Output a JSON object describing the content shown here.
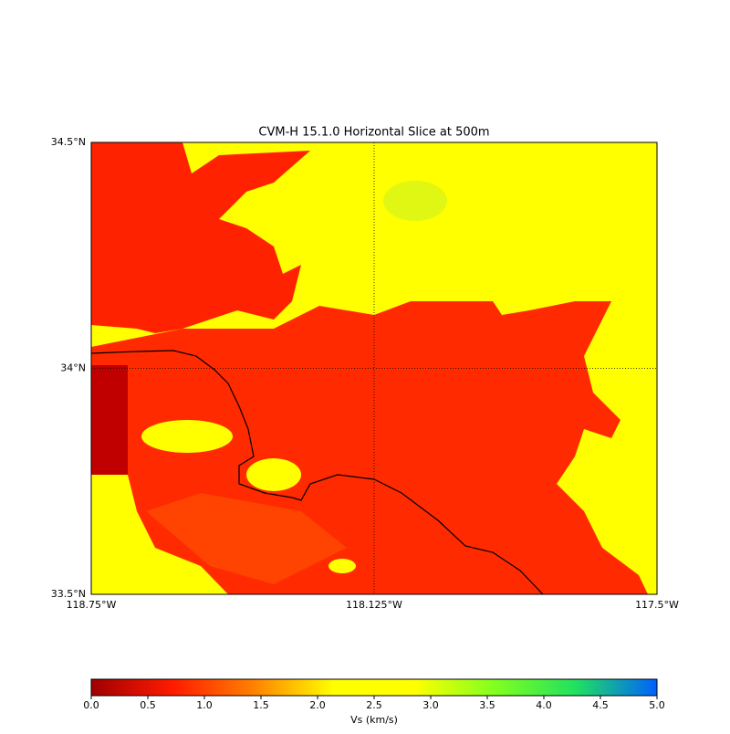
{
  "title": "CVM-H 15.1.0 Horizontal Slice at 500m",
  "map": {
    "latlim": [
      33.5,
      34.5
    ],
    "lonlim": [
      -118.75,
      -117.5
    ],
    "lat_ticks": [
      {
        "value": 33.5,
        "label": "33.5°N"
      },
      {
        "value": 34,
        "label": "34°N"
      },
      {
        "value": 34.5,
        "label": "34.5°N"
      }
    ],
    "lon_ticks": [
      {
        "value": -118.75,
        "label": "118.75°W"
      },
      {
        "value": -118.125,
        "label": "118.125°W"
      },
      {
        "value": -117.5,
        "label": "117.5°W"
      }
    ]
  },
  "colorbar": {
    "label": "Vs (km/s)",
    "lim": [
      0,
      5
    ],
    "ticks": [
      {
        "value": 0,
        "label": "0.0"
      },
      {
        "value": 0.5,
        "label": "0.5"
      },
      {
        "value": 1,
        "label": "1.0"
      },
      {
        "value": 1.5,
        "label": "1.5"
      },
      {
        "value": 2,
        "label": "2.0"
      },
      {
        "value": 2.5,
        "label": "2.5"
      },
      {
        "value": 3,
        "label": "3.0"
      },
      {
        "value": 3.5,
        "label": "3.5"
      },
      {
        "value": 4,
        "label": "4.0"
      },
      {
        "value": 4.5,
        "label": "4.5"
      },
      {
        "value": 5,
        "label": "5.0"
      }
    ],
    "colors": [
      "#a00000",
      "#ff1a00",
      "#ff8000",
      "#ffff00",
      "#ffff00",
      "#80ff20",
      "#20e060",
      "#0060ff"
    ]
  }
}
